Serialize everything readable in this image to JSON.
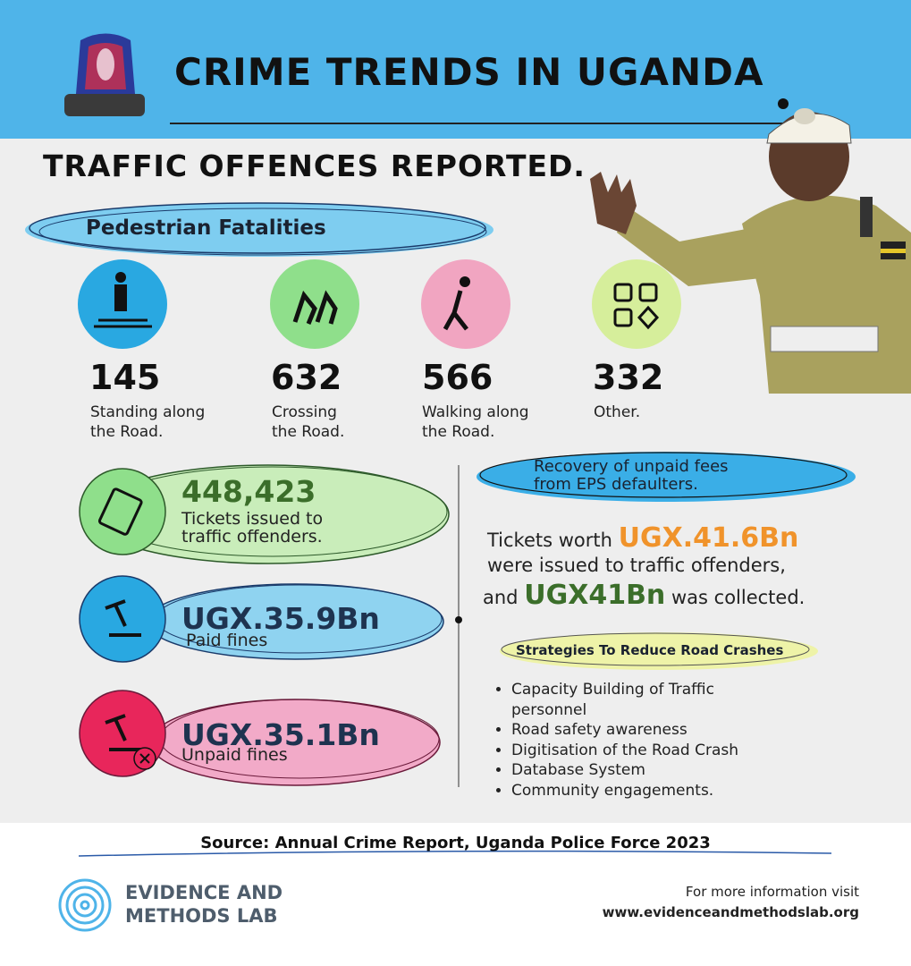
{
  "header": {
    "title": "CRIME TRENDS IN UGANDA"
  },
  "section_title": "TRAFFIC OFFENCES REPORTED.",
  "pedestrian": {
    "title": "Pedestrian Fatalities",
    "items": [
      {
        "value": "145",
        "lines": [
          "Standing along",
          "the Road."
        ]
      },
      {
        "value": "632",
        "lines": [
          "Crossing",
          "the Road."
        ]
      },
      {
        "value": "566",
        "lines": [
          "Walking along",
          "the Road."
        ]
      },
      {
        "value": "332",
        "lines": [
          "Other."
        ]
      }
    ]
  },
  "tickets": {
    "value": "448,423",
    "lines": [
      "Tickets issued to",
      "traffic offenders."
    ]
  },
  "paid": {
    "value": "UGX.35.9Bn",
    "label": "Paid fines"
  },
  "unpaid": {
    "value": "UGX.35.1Bn",
    "label": "Unpaid fines"
  },
  "recovery": {
    "title_lines": [
      "Recovery of unpaid fees",
      "from EPS defaulters."
    ],
    "text": {
      "a": "Tickets worth",
      "amount_issued": "UGX.41.6Bn",
      "b": "were issued to traffic offenders,",
      "c": "and",
      "amount_collected": "UGX41Bn",
      "d": "was collected."
    }
  },
  "strategies": {
    "title": "Strategies To Reduce Road Crashes",
    "items": [
      "Capacity Building of Traffic personnel",
      "Road safety awareness",
      "Digitisation of the Road Crash",
      "Database System",
      "Community engagements."
    ]
  },
  "source": "Source: Annual Crime Report, Uganda Police Force 2023",
  "logo": {
    "lines": [
      "EVIDENCE AND",
      "METHODS LAB"
    ]
  },
  "footer": {
    "lines": [
      "For more information visit",
      "www.evidenceandmethodslab.org"
    ]
  }
}
